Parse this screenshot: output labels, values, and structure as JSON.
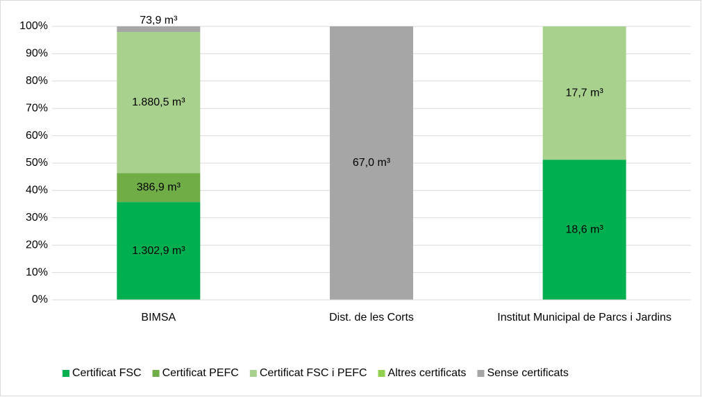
{
  "chart_data": {
    "type": "stacked_percent_bar",
    "categories": [
      "BIMSA",
      "Dist. de les Corts",
      "Institut Municipal de Parcs i Jardins"
    ],
    "series": [
      {
        "name": "Certificat FSC",
        "color": "#00b050",
        "values": [
          1302.9,
          null,
          18.6
        ],
        "value_labels": [
          "1.302,9 m³",
          null,
          "18,6 m³"
        ]
      },
      {
        "name": "Certificat PEFC",
        "color": "#70ad47",
        "values": [
          386.9,
          null,
          null
        ],
        "value_labels": [
          "386,9  m³",
          null,
          null
        ]
      },
      {
        "name": "Certificat FSC i PEFC",
        "color": "#a9d18e",
        "values": [
          1880.5,
          null,
          17.7
        ],
        "value_labels": [
          "1.880,5 m³",
          null,
          "17,7  m³"
        ]
      },
      {
        "name": "Altres certificats",
        "color": "#92d050",
        "values": [
          null,
          null,
          null
        ]
      },
      {
        "name": "Sense certificats",
        "color": "#a6a6a6",
        "values": [
          73.9,
          67.0,
          null
        ],
        "value_labels": [
          "73,9 m³",
          "67,0 m³",
          null
        ]
      }
    ],
    "ylim": [
      0,
      100
    ],
    "yticks": [
      {
        "value": 0,
        "label": "0%"
      },
      {
        "value": 10,
        "label": "10%"
      },
      {
        "value": 20,
        "label": "20%"
      },
      {
        "value": 30,
        "label": "30%"
      },
      {
        "value": 40,
        "label": "40%"
      },
      {
        "value": 50,
        "label": "50%"
      },
      {
        "value": 60,
        "label": "60%"
      },
      {
        "value": 70,
        "label": "70%"
      },
      {
        "value": 80,
        "label": "80%"
      },
      {
        "value": 90,
        "label": "90%"
      },
      {
        "value": 100,
        "label": "100%"
      }
    ],
    "grid": true,
    "legend": "bottom"
  }
}
